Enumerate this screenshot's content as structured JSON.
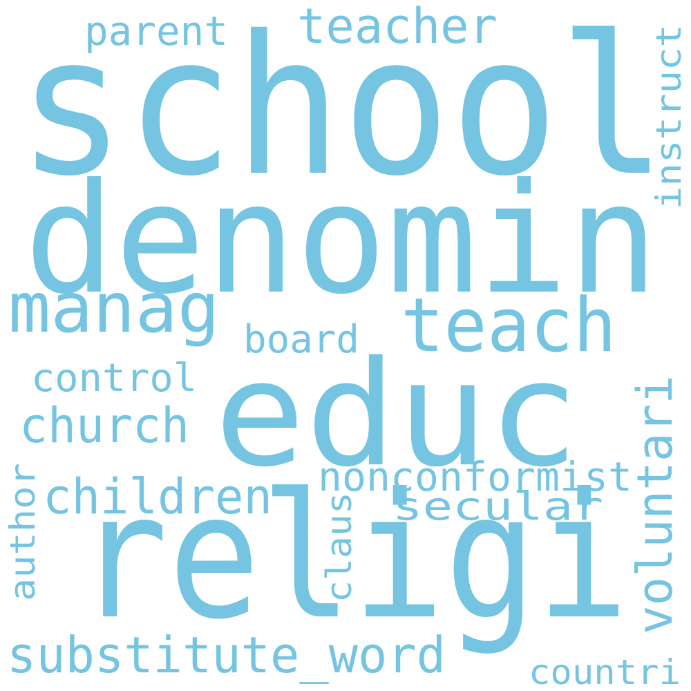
{
  "cloud": {
    "color": "#74c4e2",
    "words": {
      "school": "school",
      "denomin": "denomin",
      "educ": "educ",
      "religi": "religi",
      "teach": "teach",
      "manag": "manag",
      "teacher": "teacher",
      "parent": "parent",
      "instruct": "instruct",
      "board": "board",
      "control": "control",
      "church": "church",
      "children": "children",
      "nonconformist": "nonconformist",
      "secular": "secular",
      "voluntari": "voluntari",
      "author": "author",
      "claus": "claus",
      "substitute_word": "substitute_word",
      "countri": "countri"
    }
  }
}
